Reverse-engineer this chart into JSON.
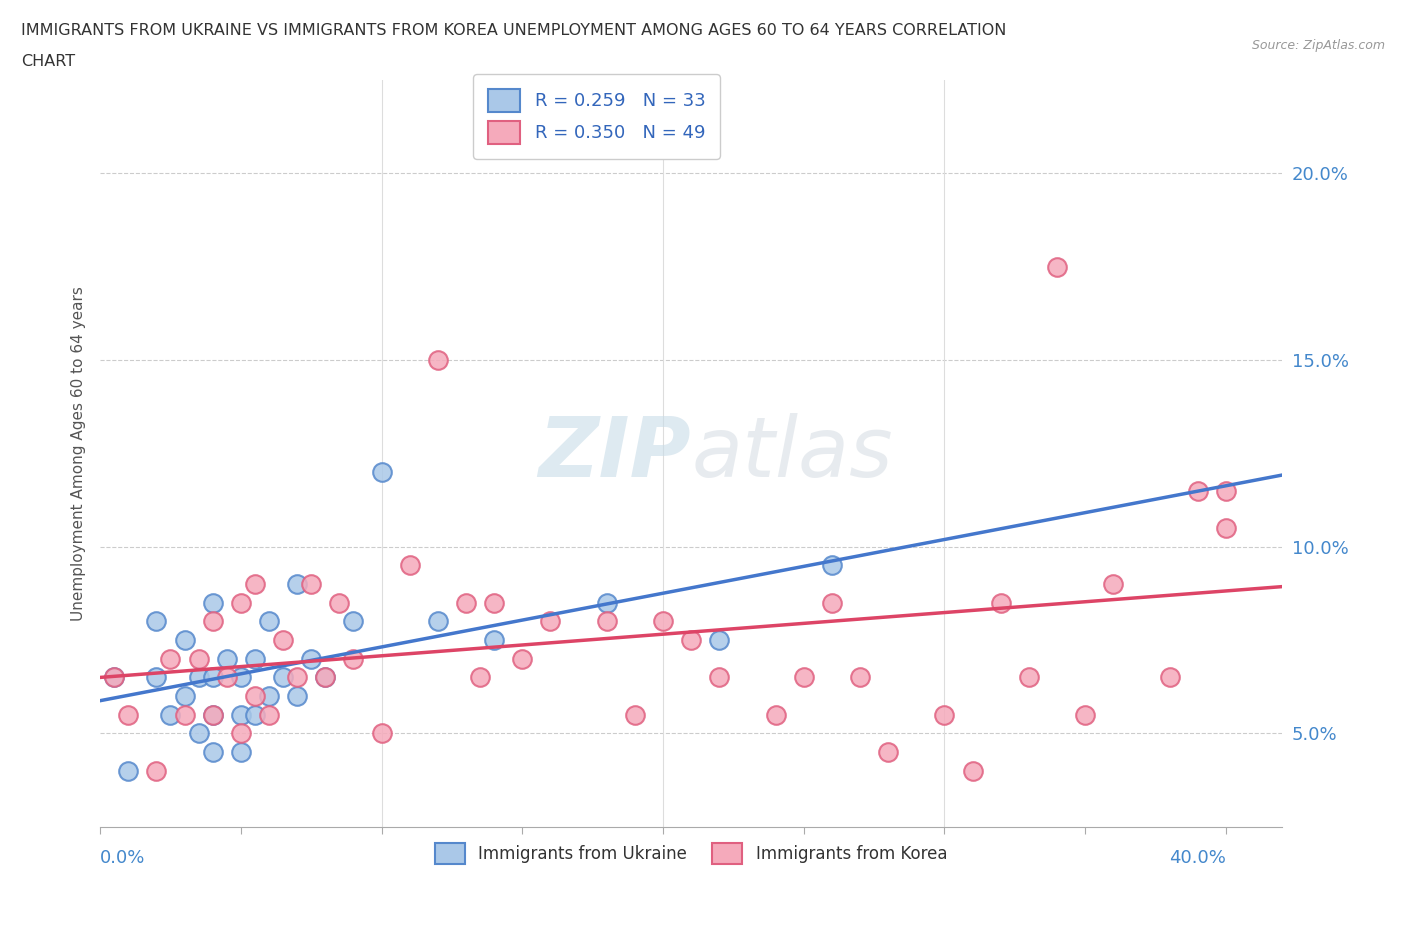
{
  "title_line1": "IMMIGRANTS FROM UKRAINE VS IMMIGRANTS FROM KOREA UNEMPLOYMENT AMONG AGES 60 TO 64 YEARS CORRELATION",
  "title_line2": "CHART",
  "source": "Source: ZipAtlas.com",
  "ylabel": "Unemployment Among Ages 60 to 64 years",
  "yticks": [
    0.05,
    0.1,
    0.15,
    0.2
  ],
  "ytick_labels": [
    "5.0%",
    "10.0%",
    "15.0%",
    "20.0%"
  ],
  "xticks": [
    0.0,
    0.05,
    0.1,
    0.15,
    0.2,
    0.25,
    0.3,
    0.35,
    0.4
  ],
  "xlim": [
    0.0,
    0.42
  ],
  "ylim": [
    0.025,
    0.225
  ],
  "legend_ukraine": "R = 0.259   N = 33",
  "legend_korea": "R = 0.350   N = 49",
  "ukraine_color": "#aac8e8",
  "korea_color": "#f5aabb",
  "ukraine_edge_color": "#5588cc",
  "korea_edge_color": "#e06080",
  "ukraine_line_color": "#4477cc",
  "korea_line_color": "#dd4466",
  "watermark_color": "#d8e8f0",
  "ukraine_scatter_x": [
    0.005,
    0.01,
    0.02,
    0.02,
    0.025,
    0.03,
    0.03,
    0.035,
    0.035,
    0.04,
    0.04,
    0.04,
    0.04,
    0.045,
    0.05,
    0.05,
    0.05,
    0.055,
    0.055,
    0.06,
    0.06,
    0.065,
    0.07,
    0.07,
    0.075,
    0.08,
    0.09,
    0.1,
    0.12,
    0.14,
    0.18,
    0.22,
    0.26
  ],
  "ukraine_scatter_y": [
    0.065,
    0.04,
    0.065,
    0.08,
    0.055,
    0.06,
    0.075,
    0.05,
    0.065,
    0.045,
    0.055,
    0.065,
    0.085,
    0.07,
    0.045,
    0.055,
    0.065,
    0.055,
    0.07,
    0.06,
    0.08,
    0.065,
    0.06,
    0.09,
    0.07,
    0.065,
    0.08,
    0.12,
    0.08,
    0.075,
    0.085,
    0.075,
    0.095
  ],
  "korea_scatter_x": [
    0.005,
    0.01,
    0.02,
    0.025,
    0.03,
    0.035,
    0.04,
    0.04,
    0.045,
    0.05,
    0.05,
    0.055,
    0.055,
    0.06,
    0.065,
    0.07,
    0.075,
    0.08,
    0.085,
    0.09,
    0.1,
    0.11,
    0.12,
    0.13,
    0.135,
    0.14,
    0.15,
    0.16,
    0.18,
    0.19,
    0.2,
    0.21,
    0.22,
    0.24,
    0.25,
    0.26,
    0.27,
    0.28,
    0.3,
    0.31,
    0.32,
    0.33,
    0.34,
    0.35,
    0.36,
    0.38,
    0.39,
    0.4,
    0.4
  ],
  "korea_scatter_y": [
    0.065,
    0.055,
    0.04,
    0.07,
    0.055,
    0.07,
    0.055,
    0.08,
    0.065,
    0.05,
    0.085,
    0.06,
    0.09,
    0.055,
    0.075,
    0.065,
    0.09,
    0.065,
    0.085,
    0.07,
    0.05,
    0.095,
    0.15,
    0.085,
    0.065,
    0.085,
    0.07,
    0.08,
    0.08,
    0.055,
    0.08,
    0.075,
    0.065,
    0.055,
    0.065,
    0.085,
    0.065,
    0.045,
    0.055,
    0.04,
    0.085,
    0.065,
    0.175,
    0.055,
    0.09,
    0.065,
    0.115,
    0.105,
    0.115
  ]
}
